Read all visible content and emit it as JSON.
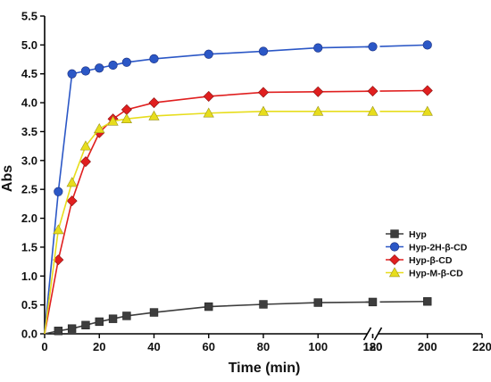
{
  "chart_data": {
    "type": "line",
    "xlabel": "Time (min)",
    "ylabel": "Abs",
    "xlim": [
      0,
      220
    ],
    "ylim": [
      0,
      5.5
    ],
    "axis_break": {
      "from": 120,
      "to": 180
    },
    "x_tick_labels": [
      "0",
      "20",
      "40",
      "60",
      "80",
      "100",
      "120",
      "180",
      "200",
      "220"
    ],
    "y_tick_labels": [
      "0.0",
      "0.5",
      "1.0",
      "1.5",
      "2.0",
      "2.5",
      "3.0",
      "3.5",
      "4.0",
      "4.5",
      "5.0",
      "5.5"
    ],
    "legend_position": "right",
    "series": [
      {
        "name": "Hyp",
        "color": "#3d3d3d",
        "marker": "square",
        "x": [
          0,
          5,
          10,
          15,
          20,
          25,
          30,
          40,
          60,
          80,
          100,
          120,
          200
        ],
        "y": [
          0.0,
          0.05,
          0.09,
          0.15,
          0.21,
          0.26,
          0.31,
          0.37,
          0.47,
          0.51,
          0.54,
          0.55,
          0.56
        ]
      },
      {
        "name": "Hyp-2H-β-CD",
        "color": "#2b57c6",
        "marker": "circle",
        "x": [
          0,
          5,
          10,
          15,
          20,
          25,
          30,
          40,
          60,
          80,
          100,
          120,
          200
        ],
        "y": [
          0.0,
          2.46,
          4.5,
          4.55,
          4.6,
          4.65,
          4.7,
          4.76,
          4.84,
          4.89,
          4.95,
          4.97,
          5.0
        ]
      },
      {
        "name": "Hyp-β-CD",
        "color": "#e01f1f",
        "marker": "diamond",
        "x": [
          0,
          5,
          10,
          15,
          20,
          25,
          30,
          40,
          60,
          80,
          100,
          120,
          200
        ],
        "y": [
          0.0,
          1.28,
          2.3,
          2.98,
          3.48,
          3.72,
          3.88,
          4.0,
          4.11,
          4.18,
          4.19,
          4.2,
          4.21
        ]
      },
      {
        "name": "Hyp-M-β-CD",
        "color": "#e7dd1c",
        "marker": "triangle",
        "x": [
          0,
          5,
          10,
          15,
          20,
          25,
          30,
          40,
          60,
          80,
          100,
          120,
          200
        ],
        "y": [
          0.0,
          1.8,
          2.62,
          3.25,
          3.55,
          3.68,
          3.72,
          3.77,
          3.82,
          3.85,
          3.85,
          3.85,
          3.85
        ]
      }
    ]
  }
}
